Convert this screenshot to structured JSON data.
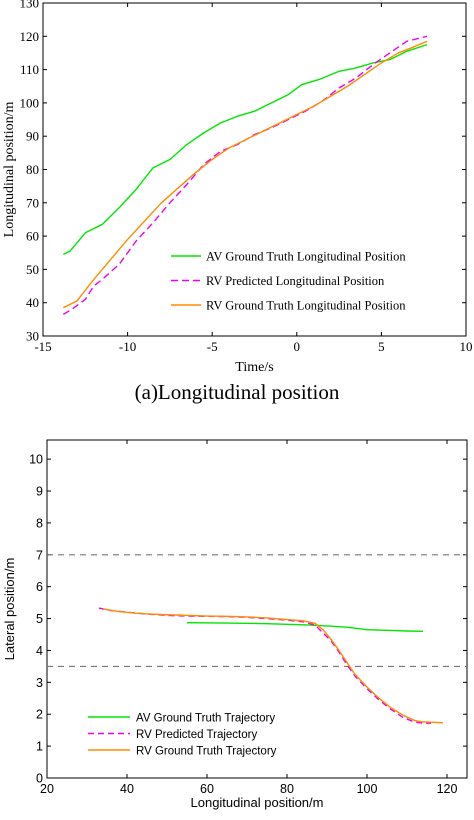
{
  "chart_data": [
    {
      "type": "line",
      "xlabel": "Time/s",
      "ylabel": "Longitudinal position/m",
      "xlim": [
        -15,
        10
      ],
      "ylim": [
        30,
        130
      ],
      "xticks": [
        "-15",
        "-10",
        "-5",
        "0",
        "5",
        "10"
      ],
      "yticks": [
        "30",
        "40",
        "50",
        "60",
        "70",
        "80",
        "90",
        "100",
        "110",
        "120",
        "130"
      ],
      "grid": false,
      "legend_position": "bottom-right",
      "series": [
        {
          "name": "AV Ground Truth Longitudinal Position",
          "color": "#00e600",
          "style": "solid",
          "x": [
            -13.8,
            -13.4,
            -12.5,
            -11.5,
            -10.5,
            -9.5,
            -8.5,
            -7.5,
            -6.5,
            -5.5,
            -4.5,
            -3.5,
            -2.5,
            -1.5,
            -0.5,
            0.3,
            1.3,
            2.5,
            3.5,
            4.5,
            5.5,
            6.5,
            7.7
          ],
          "y": [
            54.5,
            55.5,
            61,
            63.5,
            68.5,
            74,
            80.5,
            83,
            87.5,
            91,
            94,
            96,
            97.5,
            100,
            102.5,
            105.5,
            107,
            109.5,
            110.5,
            112,
            113,
            115.5,
            117.5
          ]
        },
        {
          "name": "RV Predicted Longitudinal Position",
          "color": "#ee00ee",
          "style": "dashed",
          "x": [
            -13.8,
            -13.3,
            -12.5,
            -12,
            -11.5,
            -10.5,
            -10,
            -9.5,
            -8.5,
            -7.5,
            -6.5,
            -5.5,
            -4.5,
            -3.5,
            -2.5,
            -1.5,
            -0.5,
            0.5,
            1.5,
            2.5,
            3.5,
            4.5,
            5.5,
            6.5,
            7.7
          ],
          "y": [
            36.5,
            38,
            41,
            45,
            47,
            51.5,
            55,
            58.5,
            64,
            70,
            75.5,
            81.5,
            85.5,
            87.5,
            90.5,
            92.5,
            95,
            97.5,
            100.5,
            104.5,
            107.5,
            111.5,
            115,
            118.5,
            120
          ]
        },
        {
          "name": "RV Ground Truth Longitudinal Position",
          "color": "#ff8c00",
          "style": "solid",
          "x": [
            -13.8,
            -13,
            -12,
            -11,
            -10,
            -9,
            -8,
            -7,
            -6,
            -5,
            -4,
            -3,
            -2,
            -1,
            0,
            1,
            2,
            3,
            4,
            5,
            6,
            7,
            7.7
          ],
          "y": [
            38.5,
            40.5,
            47,
            53,
            59,
            64.5,
            70,
            74.5,
            79,
            83,
            86.5,
            89,
            91.5,
            94,
            96.5,
            99,
            102,
            105,
            108.5,
            112,
            115,
            117,
            118.5
          ]
        }
      ]
    },
    {
      "type": "line",
      "xlabel": "Longitudinal position/m",
      "ylabel": "Lateral position/m",
      "xlim": [
        20,
        125
      ],
      "ylim": [
        0,
        10.6
      ],
      "xticks": [
        "20",
        "40",
        "60",
        "80",
        "100",
        "120"
      ],
      "yticks": [
        "0",
        "1",
        "2",
        "3",
        "4",
        "5",
        "6",
        "7",
        "8",
        "9",
        "10"
      ],
      "grid": false,
      "legend_position": "bottom-left",
      "reference_lines": [
        {
          "y": 7,
          "color": "#777777",
          "style": "dashed"
        },
        {
          "y": 3.5,
          "color": "#777777",
          "style": "dashed"
        }
      ],
      "series": [
        {
          "name": "AV Ground Truth Trajectory",
          "color": "#00e600",
          "style": "solid",
          "x": [
            55,
            65,
            75,
            85,
            90,
            95,
            100,
            105,
            110,
            114
          ],
          "y": [
            4.87,
            4.86,
            4.84,
            4.8,
            4.77,
            4.73,
            4.65,
            4.63,
            4.61,
            4.6
          ]
        },
        {
          "name": "RV Predicted Trajectory",
          "color": "#ee00ee",
          "style": "dashed",
          "x": [
            33,
            36,
            40,
            45,
            50,
            55,
            60,
            65,
            70,
            75,
            80,
            84,
            87,
            89,
            91,
            93,
            95,
            97,
            100,
            103,
            106,
            109,
            112,
            114,
            116
          ],
          "y": [
            5.33,
            5.25,
            5.2,
            5.14,
            5.1,
            5.08,
            5.07,
            5.06,
            5.04,
            5.0,
            4.95,
            4.9,
            4.8,
            4.55,
            4.3,
            3.95,
            3.55,
            3.2,
            2.8,
            2.45,
            2.15,
            1.9,
            1.75,
            1.72,
            1.72
          ]
        },
        {
          "name": "RV Ground Truth Trajectory",
          "color": "#ff8c00",
          "style": "solid",
          "x": [
            34,
            38,
            42,
            46,
            50,
            55,
            60,
            65,
            70,
            75,
            80,
            84,
            87,
            89,
            91,
            93,
            95,
            97,
            100,
            103,
            106,
            109,
            112,
            114,
            116,
            119
          ],
          "y": [
            5.3,
            5.22,
            5.17,
            5.14,
            5.12,
            5.1,
            5.08,
            5.07,
            5.05,
            5.02,
            4.97,
            4.93,
            4.85,
            4.65,
            4.35,
            4.0,
            3.62,
            3.25,
            2.85,
            2.5,
            2.2,
            1.97,
            1.8,
            1.76,
            1.75,
            1.73
          ]
        }
      ]
    }
  ],
  "caption": "(a)Longitudinal position"
}
